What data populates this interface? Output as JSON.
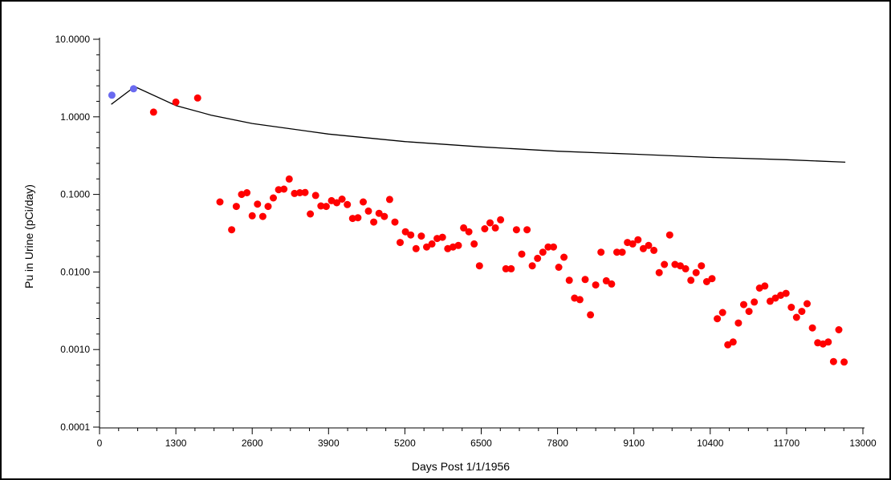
{
  "chart_data": {
    "type": "scatter",
    "title": "",
    "xlabel": "Days Post 1/1/1956",
    "ylabel": "Pu in Urine (pCi/day)",
    "xlim": [
      0,
      13000
    ],
    "ylim": [
      0.0001,
      10
    ],
    "yscale": "log",
    "grid": false,
    "x_ticks": [
      "0",
      "1300",
      "2600",
      "3900",
      "5200",
      "6500",
      "7800",
      "9100",
      "10400",
      "11700",
      "13000"
    ],
    "y_ticks": [
      "10.0000",
      "1.0000",
      "0.1000",
      "0.0100",
      "0.0010",
      "0.0001"
    ],
    "x_tick_values": [
      0,
      1300,
      2600,
      3900,
      5200,
      6500,
      7800,
      9100,
      10400,
      11700,
      13000
    ],
    "y_tick_values": [
      10,
      1,
      0.1,
      0.01,
      0.001,
      0.0001
    ],
    "colors": {
      "blue_points": "#6a6af0",
      "red_points": "#ff0000",
      "fit_line": "#000000",
      "frame": "#000000"
    },
    "series": [
      {
        "type": "line",
        "color": "#000000",
        "x": [
          200,
          600,
          1300,
          1900,
          2600,
          3900,
          5200,
          6500,
          7800,
          9100,
          10400,
          11700,
          12700
        ],
        "y": [
          1.45,
          2.45,
          1.4,
          1.05,
          0.82,
          0.6,
          0.48,
          0.41,
          0.36,
          0.33,
          0.3,
          0.28,
          0.26
        ]
      },
      {
        "type": "scatter",
        "color": "#6a6af0",
        "x": [
          210,
          580
        ],
        "y": [
          1.9,
          2.3
        ]
      },
      {
        "type": "scatter",
        "color": "#ff0000",
        "x": [
          920,
          1300,
          1670,
          2050,
          2250,
          2330,
          2420,
          2510,
          2600,
          2690,
          2780,
          2870,
          2960,
          3050,
          3140,
          3230,
          3320,
          3410,
          3500,
          3590,
          3680,
          3770,
          3860,
          3950,
          4040,
          4130,
          4220,
          4310,
          4400,
          4490,
          4580,
          4670,
          4760,
          4850,
          4940,
          5030,
          5120,
          5210,
          5300,
          5390,
          5480,
          5570,
          5660,
          5750,
          5840,
          5930,
          6020,
          6110,
          6200,
          6290,
          6380,
          6470,
          6560,
          6650,
          6740,
          6830,
          6920,
          7010,
          7100,
          7190,
          7280,
          7370,
          7460,
          7550,
          7640,
          7730,
          7820,
          7910,
          8000,
          8090,
          8180,
          8270,
          8360,
          8450,
          8540,
          8630,
          8720,
          8810,
          8900,
          8990,
          9080,
          9170,
          9260,
          9350,
          9440,
          9530,
          9620,
          9710,
          9800,
          9890,
          9980,
          10070,
          10160,
          10250,
          10340,
          10430,
          10520,
          10610,
          10700,
          10790,
          10880,
          10970,
          11060,
          11150,
          11240,
          11330,
          11420,
          11510,
          11600,
          11690,
          11780,
          11870,
          11960,
          12050,
          12140,
          12230,
          12320,
          12410,
          12500,
          12590,
          12680
        ],
        "y": [
          1.15,
          1.55,
          1.75,
          0.08,
          0.035,
          0.07,
          0.1,
          0.105,
          0.053,
          0.075,
          0.052,
          0.07,
          0.09,
          0.115,
          0.117,
          0.158,
          0.103,
          0.105,
          0.106,
          0.056,
          0.097,
          0.071,
          0.07,
          0.083,
          0.078,
          0.087,
          0.074,
          0.049,
          0.05,
          0.08,
          0.061,
          0.044,
          0.057,
          0.052,
          0.086,
          0.044,
          0.024,
          0.033,
          0.03,
          0.02,
          0.029,
          0.021,
          0.023,
          0.027,
          0.028,
          0.02,
          0.021,
          0.022,
          0.037,
          0.033,
          0.023,
          0.012,
          0.036,
          0.043,
          0.037,
          0.047,
          0.011,
          0.011,
          0.035,
          0.017,
          0.035,
          0.012,
          0.015,
          0.018,
          0.021,
          0.021,
          0.0115,
          0.0155,
          0.0078,
          0.0046,
          0.0044,
          0.008,
          0.0028,
          0.0068,
          0.018,
          0.0077,
          0.007,
          0.018,
          0.018,
          0.024,
          0.023,
          0.026,
          0.02,
          0.022,
          0.019,
          0.0098,
          0.0125,
          0.03,
          0.0125,
          0.012,
          0.011,
          0.0078,
          0.0098,
          0.012,
          0.0075,
          0.0082,
          0.0025,
          0.003,
          0.00115,
          0.00125,
          0.0022,
          0.0038,
          0.0031,
          0.0041,
          0.0062,
          0.0066,
          0.0042,
          0.0046,
          0.005,
          0.0053,
          0.0035,
          0.0026,
          0.0031,
          0.0039,
          0.0019,
          0.00122,
          0.00118,
          0.00125,
          0.0007,
          0.0018,
          0.00069
        ]
      }
    ]
  }
}
